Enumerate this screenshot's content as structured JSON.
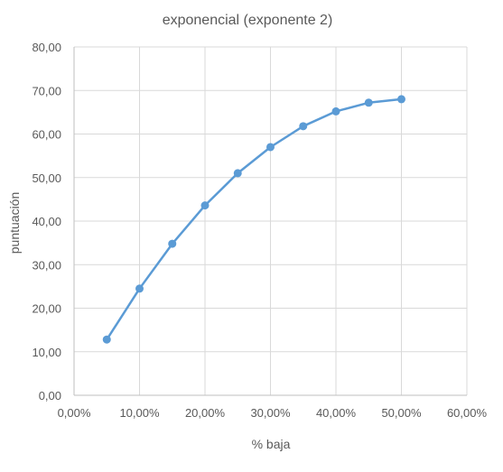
{
  "chart_data": {
    "type": "line",
    "title": "exponencial (exponente 2)",
    "xlabel": "% baja",
    "ylabel": "puntuación",
    "xlim": [
      0,
      0.6
    ],
    "ylim": [
      0,
      80
    ],
    "x_ticks": [
      0,
      0.1,
      0.2,
      0.3,
      0.4,
      0.5,
      0.6
    ],
    "x_tick_labels": [
      "0,00%",
      "10,00%",
      "20,00%",
      "30,00%",
      "40,00%",
      "50,00%",
      "60,00%"
    ],
    "y_ticks": [
      0,
      10,
      20,
      30,
      40,
      50,
      60,
      70,
      80
    ],
    "y_tick_labels": [
      "0,00",
      "10,00",
      "20,00",
      "30,00",
      "40,00",
      "50,00",
      "60,00",
      "70,00",
      "80,00"
    ],
    "grid": true,
    "legend": "none",
    "series": [
      {
        "x": [
          0.05,
          0.1,
          0.15,
          0.2,
          0.25,
          0.3,
          0.35,
          0.4,
          0.45,
          0.5
        ],
        "y": [
          12.8,
          24.5,
          34.8,
          43.6,
          51.0,
          57.0,
          61.8,
          65.2,
          67.2,
          68.0
        ],
        "color": "#5b9bd5"
      }
    ],
    "colors": {
      "grid": "#d9d9d9",
      "axis": "#bfbfbf",
      "text": "#595959"
    }
  }
}
